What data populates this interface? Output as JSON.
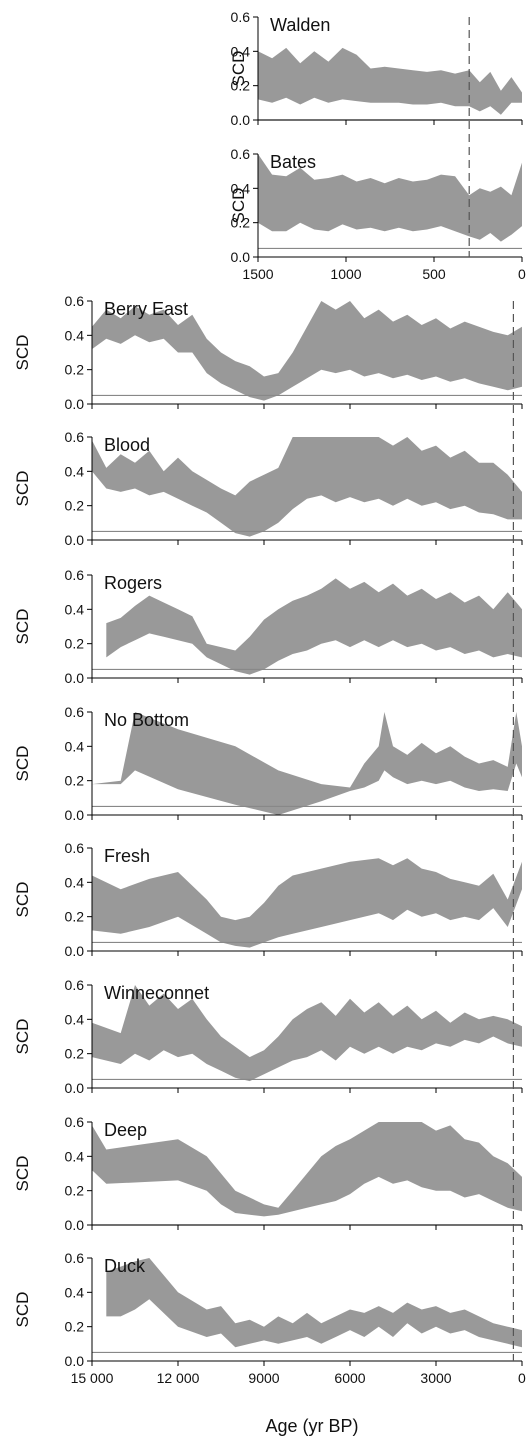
{
  "chart_data": {
    "type": "area",
    "xlabel": "Age (yr BP)",
    "ylabel": "SCD",
    "grid": false,
    "colors": {
      "band": "#999999",
      "axis": "#000000",
      "threshold": "#888888",
      "marker": "#555555"
    },
    "top_group": {
      "xlim": [
        1500,
        0
      ],
      "ylim": [
        0,
        0.6
      ],
      "x_ticks": [
        1500,
        1000,
        500,
        0
      ],
      "x_tick_labels": [
        "1500",
        "1000",
        "500",
        "0"
      ],
      "y_tick_labels": [
        "0.0",
        "0.2",
        "0.4",
        "0.6"
      ],
      "marker_age": 300
    },
    "bottom_group": {
      "xlim": [
        15000,
        0
      ],
      "ylim": [
        0,
        0.6
      ],
      "x_ticks": [
        15000,
        12000,
        9000,
        6000,
        3000,
        0
      ],
      "x_tick_labels": [
        "15 000",
        "12 000",
        "9000",
        "6000",
        "3000",
        "0"
      ],
      "y_tick_labels": [
        "0.0",
        "0.2",
        "0.4",
        "0.6"
      ],
      "marker_age": 300
    },
    "panels": [
      {
        "name": "Walden",
        "group": "top",
        "threshold": 0.0,
        "x": [
          1500,
          1420,
          1340,
          1260,
          1180,
          1100,
          1020,
          940,
          860,
          780,
          700,
          620,
          540,
          460,
          380,
          300,
          240,
          180,
          120,
          60,
          0
        ],
        "upper": [
          0.4,
          0.36,
          0.42,
          0.33,
          0.4,
          0.34,
          0.42,
          0.38,
          0.3,
          0.31,
          0.3,
          0.29,
          0.28,
          0.29,
          0.27,
          0.29,
          0.22,
          0.28,
          0.17,
          0.25,
          0.16
        ],
        "lower": [
          0.12,
          0.1,
          0.13,
          0.09,
          0.13,
          0.1,
          0.12,
          0.11,
          0.1,
          0.1,
          0.1,
          0.09,
          0.09,
          0.1,
          0.08,
          0.08,
          0.05,
          0.08,
          0.03,
          0.1,
          0.1
        ]
      },
      {
        "name": "Bates",
        "group": "top",
        "threshold": 0.05,
        "x": [
          1500,
          1420,
          1340,
          1260,
          1180,
          1100,
          1020,
          940,
          860,
          780,
          700,
          620,
          540,
          460,
          380,
          300,
          240,
          180,
          120,
          60,
          0
        ],
        "upper": [
          0.6,
          0.48,
          0.47,
          0.52,
          0.45,
          0.46,
          0.48,
          0.44,
          0.46,
          0.43,
          0.46,
          0.44,
          0.45,
          0.48,
          0.47,
          0.36,
          0.4,
          0.38,
          0.41,
          0.36,
          0.55
        ],
        "lower": [
          0.2,
          0.15,
          0.15,
          0.2,
          0.16,
          0.15,
          0.19,
          0.16,
          0.17,
          0.15,
          0.17,
          0.15,
          0.16,
          0.18,
          0.15,
          0.12,
          0.1,
          0.14,
          0.09,
          0.13,
          0.18
        ]
      },
      {
        "name": "Berry East",
        "group": "bottom",
        "threshold": 0.05,
        "x": [
          15000,
          14500,
          14000,
          13500,
          13000,
          12500,
          12000,
          11500,
          11000,
          10500,
          10000,
          9500,
          9000,
          8500,
          8000,
          7500,
          7000,
          6500,
          6000,
          5500,
          5000,
          4500,
          4000,
          3500,
          3000,
          2500,
          2000,
          1500,
          1000,
          500,
          0
        ],
        "upper": [
          0.45,
          0.55,
          0.5,
          0.57,
          0.52,
          0.55,
          0.46,
          0.52,
          0.38,
          0.3,
          0.25,
          0.22,
          0.16,
          0.18,
          0.3,
          0.45,
          0.6,
          0.55,
          0.6,
          0.5,
          0.55,
          0.48,
          0.52,
          0.46,
          0.5,
          0.44,
          0.48,
          0.45,
          0.42,
          0.4,
          0.45
        ],
        "lower": [
          0.32,
          0.38,
          0.35,
          0.4,
          0.36,
          0.38,
          0.3,
          0.3,
          0.18,
          0.12,
          0.08,
          0.04,
          0.02,
          0.05,
          0.1,
          0.15,
          0.2,
          0.18,
          0.2,
          0.16,
          0.18,
          0.15,
          0.17,
          0.14,
          0.16,
          0.13,
          0.15,
          0.12,
          0.1,
          0.08,
          0.1
        ]
      },
      {
        "name": "Blood",
        "group": "bottom",
        "threshold": 0.05,
        "x": [
          15000,
          14500,
          14000,
          13500,
          13000,
          12500,
          12000,
          11500,
          11000,
          10500,
          10000,
          9500,
          9000,
          8500,
          8000,
          7500,
          7000,
          6500,
          6000,
          5500,
          5000,
          4500,
          4000,
          3500,
          3000,
          2500,
          2000,
          1500,
          1000,
          500,
          0
        ],
        "upper": [
          0.58,
          0.42,
          0.5,
          0.45,
          0.52,
          0.4,
          0.48,
          0.4,
          0.35,
          0.3,
          0.26,
          0.34,
          0.38,
          0.42,
          0.6,
          0.6,
          0.6,
          0.6,
          0.6,
          0.6,
          0.6,
          0.55,
          0.6,
          0.52,
          0.55,
          0.48,
          0.52,
          0.45,
          0.45,
          0.38,
          0.28
        ],
        "lower": [
          0.4,
          0.3,
          0.28,
          0.3,
          0.26,
          0.28,
          0.24,
          0.2,
          0.16,
          0.1,
          0.04,
          0.02,
          0.05,
          0.1,
          0.18,
          0.24,
          0.26,
          0.22,
          0.25,
          0.22,
          0.24,
          0.2,
          0.24,
          0.2,
          0.22,
          0.18,
          0.2,
          0.16,
          0.15,
          0.12,
          0.12
        ]
      },
      {
        "name": "Rogers",
        "group": "bottom",
        "threshold": 0.05,
        "x": [
          14500,
          14000,
          13500,
          13000,
          12500,
          12000,
          11500,
          11000,
          10500,
          10000,
          9500,
          9000,
          8500,
          8000,
          7500,
          7000,
          6500,
          6000,
          5500,
          5000,
          4500,
          4000,
          3500,
          3000,
          2500,
          2000,
          1500,
          1000,
          500,
          0
        ],
        "upper": [
          0.32,
          0.35,
          0.42,
          0.48,
          0.44,
          0.4,
          0.36,
          0.2,
          0.18,
          0.16,
          0.24,
          0.34,
          0.4,
          0.45,
          0.48,
          0.52,
          0.58,
          0.52,
          0.56,
          0.5,
          0.55,
          0.48,
          0.52,
          0.46,
          0.5,
          0.44,
          0.48,
          0.4,
          0.5,
          0.4
        ],
        "lower": [
          0.12,
          0.18,
          0.22,
          0.26,
          0.24,
          0.22,
          0.2,
          0.12,
          0.08,
          0.04,
          0.02,
          0.05,
          0.1,
          0.14,
          0.16,
          0.2,
          0.22,
          0.18,
          0.22,
          0.18,
          0.22,
          0.18,
          0.2,
          0.16,
          0.18,
          0.14,
          0.16,
          0.12,
          0.14,
          0.12
        ]
      },
      {
        "name": "No Bottom",
        "group": "bottom",
        "threshold": 0.05,
        "x": [
          15000,
          14000,
          13500,
          12000,
          10000,
          8500,
          7000,
          6000,
          5500,
          5000,
          4800,
          4500,
          4000,
          3500,
          3000,
          2500,
          2000,
          1500,
          1000,
          500,
          200,
          0
        ],
        "upper": [
          0.18,
          0.2,
          0.6,
          0.5,
          0.4,
          0.26,
          0.18,
          0.16,
          0.3,
          0.4,
          0.6,
          0.4,
          0.35,
          0.42,
          0.36,
          0.4,
          0.34,
          0.3,
          0.32,
          0.28,
          0.6,
          0.4
        ],
        "lower": [
          0.18,
          0.18,
          0.26,
          0.15,
          0.06,
          0.0,
          0.08,
          0.14,
          0.16,
          0.2,
          0.26,
          0.22,
          0.18,
          0.2,
          0.18,
          0.2,
          0.16,
          0.14,
          0.15,
          0.14,
          0.3,
          0.22
        ]
      },
      {
        "name": "Fresh",
        "group": "bottom",
        "threshold": 0.05,
        "x": [
          15000,
          14000,
          13000,
          12000,
          11000,
          10500,
          10000,
          9500,
          9000,
          8500,
          8000,
          7000,
          6000,
          5000,
          4500,
          4000,
          3500,
          3000,
          2500,
          2000,
          1500,
          1000,
          500,
          0
        ],
        "upper": [
          0.44,
          0.36,
          0.42,
          0.46,
          0.3,
          0.2,
          0.18,
          0.2,
          0.28,
          0.38,
          0.44,
          0.48,
          0.52,
          0.54,
          0.5,
          0.54,
          0.48,
          0.46,
          0.42,
          0.4,
          0.38,
          0.45,
          0.3,
          0.52
        ],
        "lower": [
          0.12,
          0.1,
          0.14,
          0.2,
          0.1,
          0.05,
          0.03,
          0.02,
          0.05,
          0.08,
          0.1,
          0.14,
          0.18,
          0.22,
          0.18,
          0.24,
          0.2,
          0.22,
          0.18,
          0.2,
          0.18,
          0.25,
          0.14,
          0.36
        ]
      },
      {
        "name": "Winneconnet",
        "group": "bottom",
        "threshold": 0.05,
        "x": [
          15000,
          14000,
          13500,
          13000,
          12500,
          12000,
          11500,
          11000,
          10500,
          10000,
          9500,
          9000,
          8500,
          8000,
          7500,
          7000,
          6500,
          6000,
          5500,
          5000,
          4500,
          4000,
          3500,
          3000,
          2500,
          2000,
          1500,
          1000,
          500,
          0
        ],
        "upper": [
          0.38,
          0.32,
          0.6,
          0.48,
          0.55,
          0.46,
          0.52,
          0.4,
          0.3,
          0.24,
          0.18,
          0.22,
          0.3,
          0.4,
          0.46,
          0.5,
          0.42,
          0.52,
          0.44,
          0.5,
          0.42,
          0.48,
          0.4,
          0.45,
          0.38,
          0.44,
          0.4,
          0.42,
          0.4,
          0.36
        ],
        "lower": [
          0.18,
          0.14,
          0.2,
          0.16,
          0.22,
          0.18,
          0.2,
          0.14,
          0.1,
          0.06,
          0.04,
          0.08,
          0.12,
          0.16,
          0.18,
          0.22,
          0.16,
          0.24,
          0.2,
          0.24,
          0.2,
          0.24,
          0.22,
          0.26,
          0.24,
          0.28,
          0.26,
          0.3,
          0.26,
          0.24
        ]
      },
      {
        "name": "Deep",
        "group": "bottom",
        "threshold": 0.0,
        "x": [
          15000,
          14500,
          12000,
          11000,
          10500,
          10000,
          9500,
          9000,
          8500,
          8000,
          7500,
          7000,
          6500,
          6000,
          5500,
          5000,
          4500,
          4000,
          3500,
          3000,
          2500,
          2000,
          1500,
          1000,
          500,
          0
        ],
        "upper": [
          0.58,
          0.44,
          0.5,
          0.4,
          0.3,
          0.2,
          0.16,
          0.12,
          0.1,
          0.2,
          0.3,
          0.4,
          0.46,
          0.5,
          0.55,
          0.6,
          0.6,
          0.6,
          0.6,
          0.55,
          0.58,
          0.5,
          0.48,
          0.4,
          0.36,
          0.28
        ],
        "lower": [
          0.32,
          0.24,
          0.26,
          0.2,
          0.12,
          0.07,
          0.06,
          0.05,
          0.06,
          0.08,
          0.1,
          0.12,
          0.14,
          0.18,
          0.24,
          0.28,
          0.24,
          0.26,
          0.22,
          0.2,
          0.2,
          0.16,
          0.18,
          0.14,
          0.1,
          0.08
        ]
      },
      {
        "name": "Duck",
        "group": "bottom",
        "threshold": 0.05,
        "x": [
          14500,
          14000,
          13500,
          13000,
          12000,
          11000,
          10500,
          10000,
          9500,
          9000,
          8500,
          8000,
          7500,
          7000,
          6500,
          6000,
          5500,
          5000,
          4500,
          4000,
          3500,
          3000,
          2500,
          2000,
          1500,
          1000,
          500,
          0
        ],
        "upper": [
          0.52,
          0.55,
          0.58,
          0.6,
          0.4,
          0.3,
          0.32,
          0.22,
          0.24,
          0.2,
          0.26,
          0.22,
          0.28,
          0.22,
          0.26,
          0.3,
          0.28,
          0.32,
          0.28,
          0.34,
          0.3,
          0.32,
          0.28,
          0.3,
          0.26,
          0.22,
          0.2,
          0.18
        ],
        "lower": [
          0.26,
          0.26,
          0.3,
          0.36,
          0.2,
          0.14,
          0.16,
          0.08,
          0.1,
          0.12,
          0.1,
          0.12,
          0.14,
          0.1,
          0.14,
          0.18,
          0.14,
          0.2,
          0.14,
          0.22,
          0.16,
          0.2,
          0.16,
          0.18,
          0.14,
          0.12,
          0.1,
          0.08
        ]
      }
    ]
  }
}
